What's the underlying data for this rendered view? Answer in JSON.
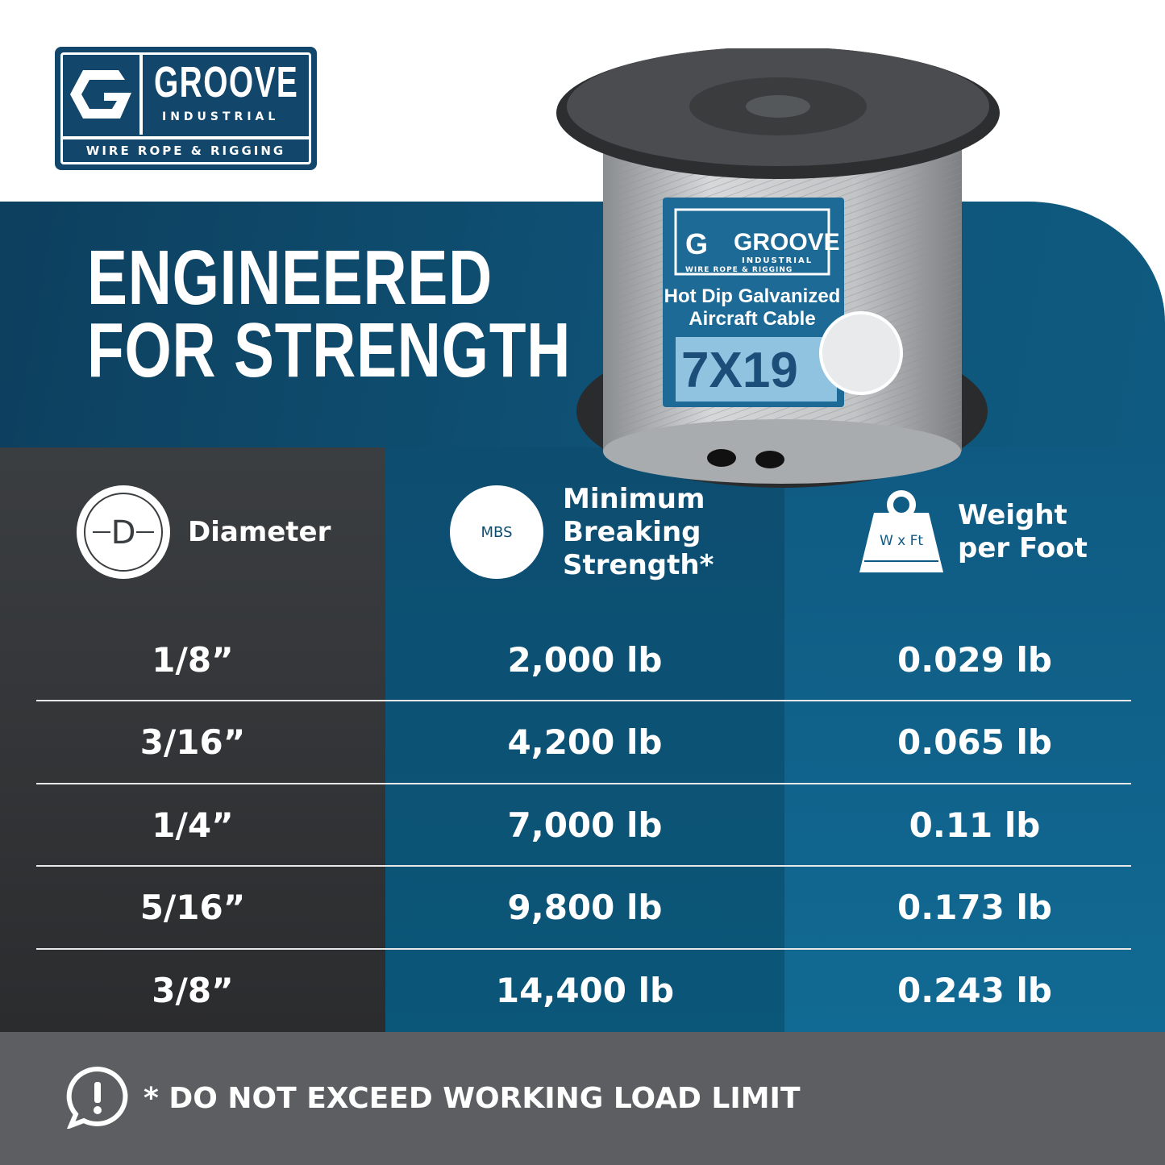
{
  "logo": {
    "brand": "GROOVE",
    "sub": "INDUSTRIAL",
    "tagline": "WIRE ROPE & RIGGING"
  },
  "headline": {
    "line1": "ENGINEERED",
    "line2": "FOR STRENGTH"
  },
  "product_label": {
    "brand": "GROOVE",
    "sub": "INDUSTRIAL",
    "tagline": "WIRE ROPE & RIGGING",
    "line1": "Hot Dip Galvanized",
    "line2": "Aircraft Cable",
    "construction": "7X19"
  },
  "table": {
    "headers": [
      {
        "label": "Diameter",
        "icon": "diameter-icon",
        "icon_text": "D"
      },
      {
        "label_lines": [
          "Minimum",
          "Breaking",
          "Strength*"
        ],
        "icon": "mbs-icon",
        "icon_text": "MBS"
      },
      {
        "label_lines": [
          "Weight",
          "per Foot"
        ],
        "icon": "weight-icon",
        "icon_text": "W x Ft"
      }
    ],
    "rows": [
      {
        "diameter": "1/8”",
        "mbs": "2,000 lb",
        "weight": "0.029 lb"
      },
      {
        "diameter": "3/16”",
        "mbs": "4,200 lb",
        "weight": "0.065 lb"
      },
      {
        "diameter": "1/4”",
        "mbs": "7,000 lb",
        "weight": "0.11 lb"
      },
      {
        "diameter": "5/16”",
        "mbs": "9,800 lb",
        "weight": "0.173 lb"
      },
      {
        "diameter": "3/8”",
        "mbs": "14,400 lb",
        "weight": "0.243 lb"
      }
    ]
  },
  "footer": {
    "note": "* DO NOT EXCEED WORKING LOAD LIMIT",
    "icon": "alert-bubble-icon"
  },
  "colors": {
    "brand_blue": "#12476b",
    "dark_col": "#3b3e41",
    "mid_col": "#0d4d70",
    "right_col": "#0f5a82",
    "footer": "#5c5e62"
  }
}
